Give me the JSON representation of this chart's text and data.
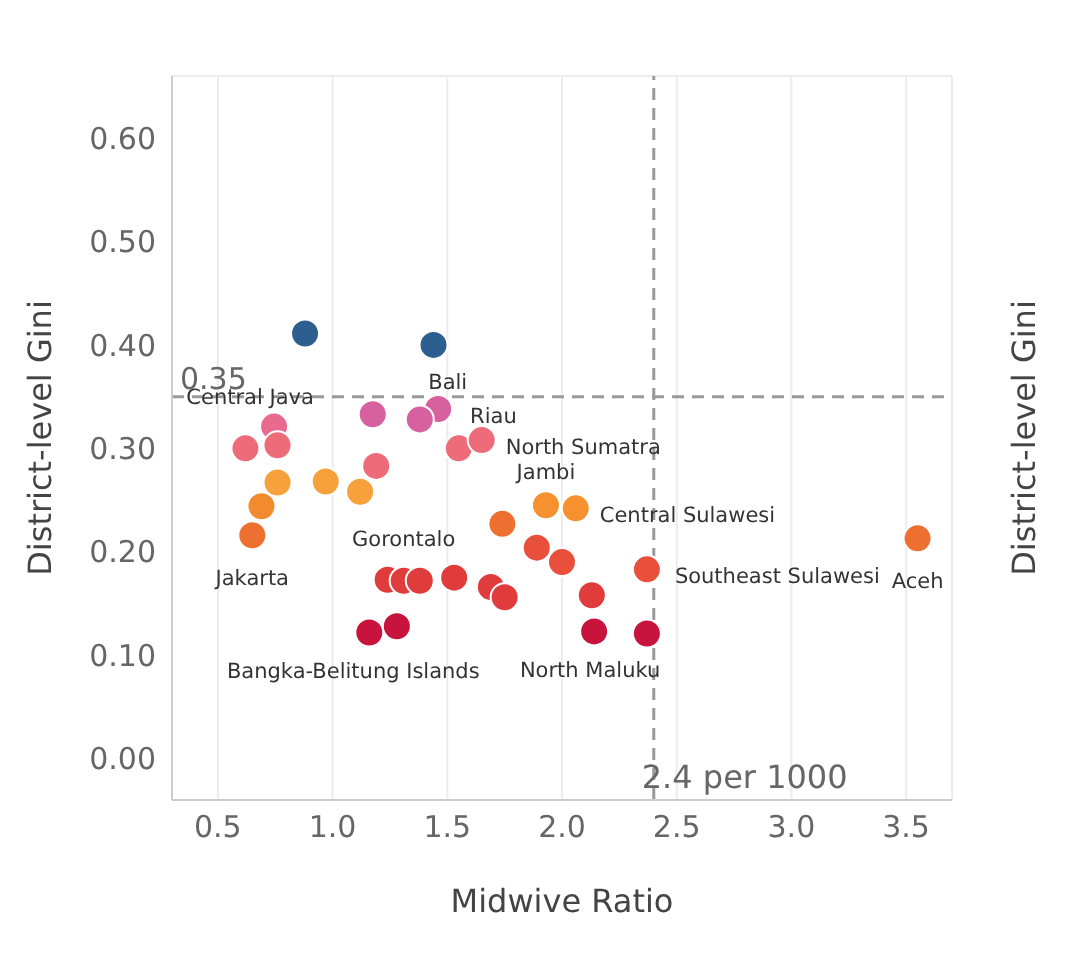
{
  "chart_data": {
    "type": "scatter",
    "xlabel": "Midwive Ratio",
    "ylabel": "District-level Gini",
    "y2label": "District-level Gini",
    "x": [
      0.88,
      1.44,
      1.46,
      1.175,
      1.38,
      0.745,
      0.62,
      0.76,
      1.19,
      0.76,
      0.97,
      1.12,
      0.69,
      0.65,
      1.55,
      1.65,
      1.93,
      2.06,
      1.74,
      1.89,
      2.0,
      1.24,
      1.31,
      1.38,
      1.53,
      1.69,
      1.75,
      2.13,
      2.37,
      1.16,
      1.28,
      2.14,
      2.37,
      3.55
    ],
    "values": [
      0.411,
      0.4,
      0.338,
      0.333,
      0.328,
      0.321,
      0.3,
      0.303,
      0.283,
      0.267,
      0.268,
      0.258,
      0.244,
      0.216,
      0.3,
      0.308,
      0.245,
      0.242,
      0.227,
      0.204,
      0.19,
      0.173,
      0.172,
      0.172,
      0.175,
      0.166,
      0.156,
      0.158,
      0.183,
      0.122,
      0.128,
      0.123,
      0.121,
      0.213
    ],
    "colors": [
      "#2c5f8f",
      "#2c5f8f",
      "#d7609e",
      "#d7609e",
      "#d7609e",
      "#e86a8e",
      "#ee6b7a",
      "#ee6b7a",
      "#ee6b7a",
      "#f6a13c",
      "#f6a13c",
      "#f6a13c",
      "#f28a2e",
      "#ee7030",
      "#ee6b7a",
      "#ee6b7a",
      "#f5922f",
      "#f5922f",
      "#ee7030",
      "#e8503c",
      "#e8503c",
      "#e03c3c",
      "#e03c3c",
      "#e03c3c",
      "#e03c3c",
      "#e03c3c",
      "#e03c3c",
      "#e03c3c",
      "#e8503c",
      "#c8143c",
      "#c8143c",
      "#c8143c",
      "#c8143c",
      "#ee7030"
    ],
    "annotations": [
      {
        "text": "Central Java",
        "x": 0.745,
        "y": 0.321
      },
      {
        "text": "Bali",
        "x": 1.38,
        "y": 0.328
      },
      {
        "text": "Riau",
        "x": 1.46,
        "y": 0.338
      },
      {
        "text": "North Sumatra",
        "x": 1.65,
        "y": 0.308
      },
      {
        "text": "Jambi",
        "x": 1.93,
        "y": 0.245
      },
      {
        "text": "Central Sulawesi",
        "x": 2.06,
        "y": 0.242
      },
      {
        "text": "Southeast Sulawesi",
        "x": 2.37,
        "y": 0.183
      },
      {
        "text": "Aceh",
        "x": 3.55,
        "y": 0.213
      },
      {
        "text": "Gorontalo",
        "x": 1.31,
        "y": 0.172
      },
      {
        "text": "Jakarta",
        "x": 0.65,
        "y": 0.216
      },
      {
        "text": "Bangka-Belitung Islands",
        "x": 1.16,
        "y": 0.122
      },
      {
        "text": "North Maluku",
        "x": 2.14,
        "y": 0.123
      }
    ],
    "ref_lines": [
      {
        "axis": "y",
        "value": 0.35,
        "label": "0.35",
        "line_style": "dashed"
      },
      {
        "axis": "x",
        "value": 2.4,
        "label": "2.4 per 1000",
        "line_style": "dashed"
      }
    ],
    "xlim": [
      0.3,
      3.7
    ],
    "xticks": [
      {
        "value": 0.5,
        "label": "0.5"
      },
      {
        "value": 1,
        "label": "1.0"
      },
      {
        "value": 1.5,
        "label": "1.5"
      },
      {
        "value": 2,
        "label": "2.0"
      },
      {
        "value": 2.5,
        "label": "2.5"
      },
      {
        "value": 3,
        "label": "3.0"
      },
      {
        "value": 3.5,
        "label": "3.5"
      }
    ],
    "ylim": [
      -0.04,
      0.66
    ],
    "yticks": [
      {
        "value": 0,
        "label": "0.00"
      },
      {
        "value": 0.1,
        "label": "0.10"
      },
      {
        "value": 0.2,
        "label": "0.20"
      },
      {
        "value": 0.3,
        "label": "0.30"
      },
      {
        "value": 0.4,
        "label": "0.40"
      },
      {
        "value": 0.5,
        "label": "0.50"
      },
      {
        "value": 0.6,
        "label": "0.60"
      }
    ],
    "grid": true,
    "marker": "circle"
  }
}
